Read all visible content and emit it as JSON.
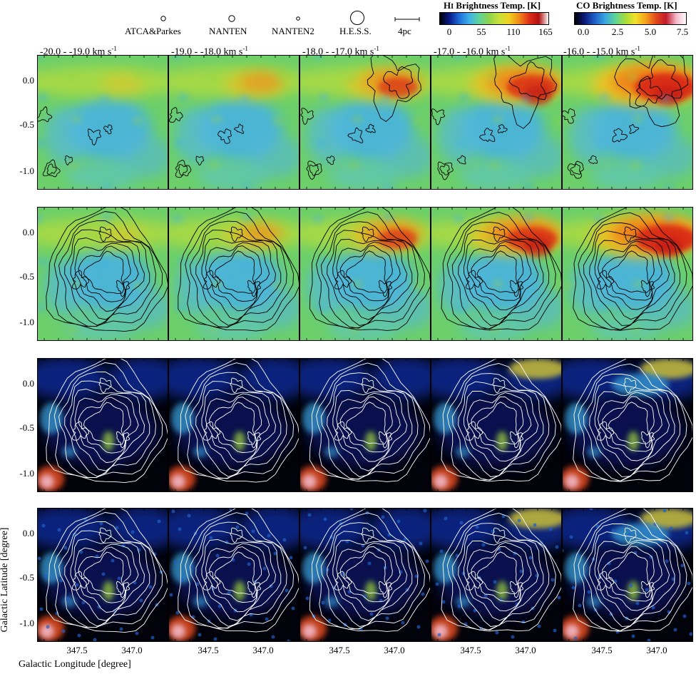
{
  "legend": {
    "beams": [
      {
        "label": "ATCA&Parkes",
        "symbol": "circle-small"
      },
      {
        "label": "NANTEN",
        "symbol": "circle-medium"
      },
      {
        "label": "NANTEN2",
        "symbol": "circle-tiny"
      },
      {
        "label": "H.E.S.S.",
        "symbol": "circle-large"
      },
      {
        "label": "4pc",
        "symbol": "scale-bar"
      }
    ],
    "hi_colorbar": {
      "title_prefix": "H",
      "title_roman": "I",
      "title_rest": " Brightness Temp. [K]",
      "ticks": [
        "0",
        "55",
        "110",
        "165"
      ]
    },
    "co_colorbar": {
      "title": "CO Brightness Temp. [K]",
      "ticks": [
        "0.0",
        "2.5",
        "5.0",
        "7.5"
      ]
    }
  },
  "velocity_ranges": [
    {
      "range": "-20.0 -  -19.0",
      "unit": "km s",
      "exp": "-1"
    },
    {
      "range": "-19.0 -  -18.0",
      "unit": "km s",
      "exp": "-1"
    },
    {
      "range": "-18.0 -  -17.0",
      "unit": "km s",
      "exp": "-1"
    },
    {
      "range": "-17.0 -  -16.0",
      "unit": "km s",
      "exp": "-1"
    },
    {
      "range": "-16.0 -  -15.0",
      "unit": "km s",
      "exp": "-1"
    }
  ],
  "axes": {
    "y_ticks": [
      "0.0",
      "-0.5",
      "-1.0"
    ],
    "x_ticks": [
      "347.5",
      "347.0"
    ],
    "y_title": "Galactic Latitude [degree]",
    "x_title": "Galactic Longitude [degree]"
  },
  "rows": [
    {
      "map": "HI",
      "contour_color": "#000000",
      "contour": "CO"
    },
    {
      "map": "HI",
      "contour_color": "#000000",
      "contour": "TeV gamma-ray"
    },
    {
      "map": "CO (NANTEN)",
      "contour_color": "#ffffff",
      "contour": "TeV gamma-ray"
    },
    {
      "map": "CO (NANTEN2)",
      "contour_color": "#ffffff",
      "contour": "TeV gamma-ray"
    }
  ],
  "colors": {
    "hi_map": [
      "#000000",
      "#0a1a8a",
      "#1e6fd8",
      "#3fb2e8",
      "#5fd39a",
      "#8fd24a",
      "#c8e03a",
      "#f0d020",
      "#f08a18",
      "#e0301a",
      "#b01010",
      "#ffffff"
    ],
    "co_map": [
      "#000000",
      "#0a1a7a",
      "#1f5fc8",
      "#3aa6e0",
      "#5ed39a",
      "#a4dc3c",
      "#f2e02a",
      "#f4a21c",
      "#e24a1c",
      "#c21a2a",
      "#f2b8c8",
      "#ffffff"
    ]
  }
}
